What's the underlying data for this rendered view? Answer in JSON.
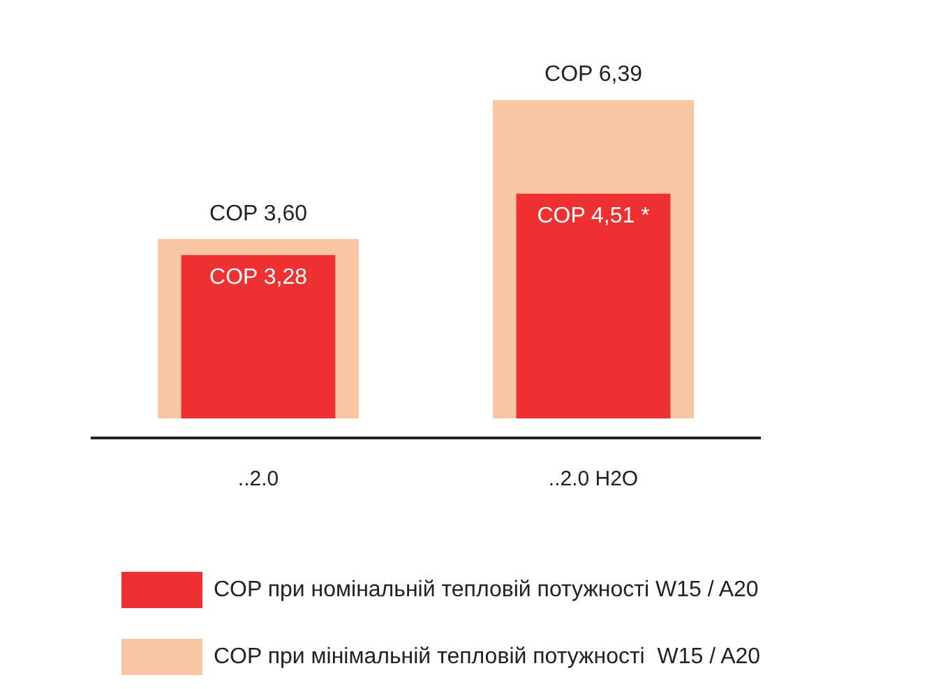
{
  "chart_data": {
    "type": "bar",
    "categories": [
      "..2.0",
      "..2.0 H2O"
    ],
    "series": [
      {
        "name": "COP при номінальній тепловій потужності W15 / A20",
        "color": "#ee3030",
        "values": [
          3.28,
          4.51
        ],
        "value_labels": [
          "COP 3,28",
          "COP 4,51 *"
        ]
      },
      {
        "name": "COP при мінімальній тепловій потужності  W15 / A20",
        "color": "#f9c6a4",
        "values": [
          3.6,
          6.39
        ],
        "value_labels": [
          "COP 3,60",
          "COP 6,39"
        ]
      }
    ],
    "legend": "bottom",
    "grid": false
  }
}
